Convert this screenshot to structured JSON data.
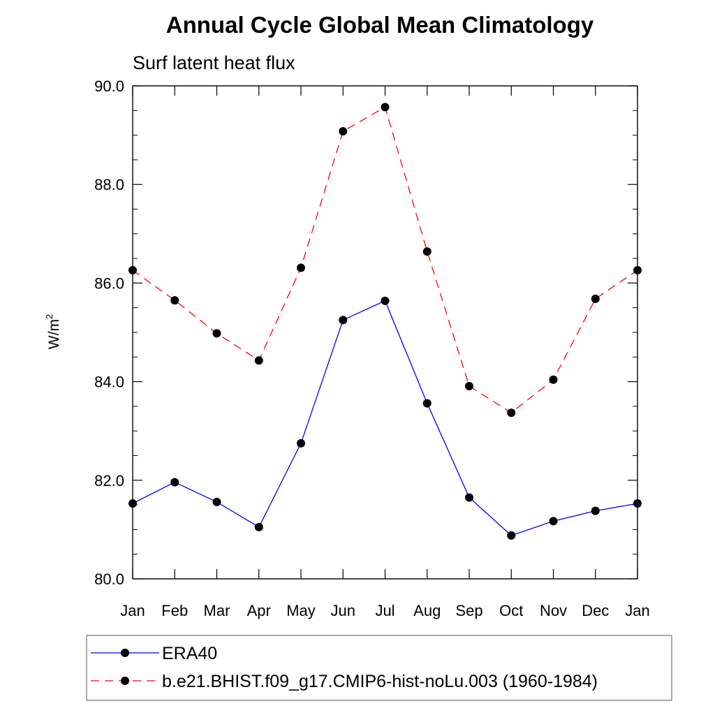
{
  "chart_data": {
    "type": "line",
    "title": "Annual Cycle Global Mean Climatology",
    "subtitle": "Surf latent heat flux",
    "ylabel_base": "W/m",
    "ylabel_sup": "2",
    "xlabel": "",
    "categories": [
      "Jan",
      "Feb",
      "Mar",
      "Apr",
      "May",
      "Jun",
      "Jul",
      "Aug",
      "Sep",
      "Oct",
      "Nov",
      "Dec",
      "Jan"
    ],
    "ylim": [
      80.0,
      90.0
    ],
    "yticks": [
      "80.0",
      "82.0",
      "84.0",
      "86.0",
      "88.0",
      "90.0"
    ],
    "grid": false,
    "legend_position": "bottom",
    "series": [
      {
        "name": "ERA40",
        "color": "#0000ff",
        "style": "solid",
        "marker": "circle",
        "values": [
          81.53,
          81.96,
          81.56,
          81.05,
          82.75,
          85.25,
          85.64,
          83.56,
          81.65,
          80.88,
          81.17,
          81.38,
          81.53
        ]
      },
      {
        "name": "b.e21.BHIST.f09_g17.CMIP6-hist-noLu.003 (1960-1984)",
        "color": "#ff0000",
        "style": "dashed",
        "marker": "circle",
        "values": [
          86.26,
          85.65,
          84.98,
          84.43,
          86.31,
          89.08,
          89.57,
          86.64,
          83.91,
          83.37,
          84.04,
          85.68,
          86.26
        ]
      }
    ]
  }
}
